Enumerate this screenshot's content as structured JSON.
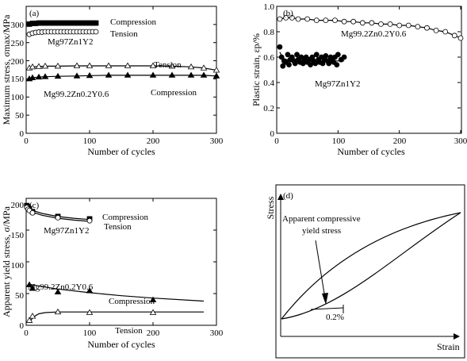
{
  "figure_text": {
    "x_tick_labels": [
      "0",
      "100",
      "200",
      "300"
    ]
  },
  "chart_data": [
    {
      "type": "line",
      "panel_label": "(a)",
      "xlabel": "Number of cycles",
      "ylabel": "Maximum stress, σmax/MPa",
      "xlim": [
        0,
        300
      ],
      "ylim": [
        0,
        350
      ],
      "yticks": [
        "0",
        "50",
        "100",
        "150",
        "200",
        "250",
        "300"
      ],
      "annotations": [
        "Compression",
        "Tension",
        "Mg97Zn1Y2",
        "Tension",
        "Mg99.2Zn0.2Y0.6",
        "Compression"
      ],
      "series": [
        {
          "marker": "filled-square",
          "x": [
            5,
            10,
            15,
            20,
            25,
            30,
            35,
            40,
            45,
            50,
            55,
            60,
            65,
            70,
            75,
            80,
            85,
            90,
            95,
            100,
            105,
            110
          ],
          "y": [
            301,
            303,
            303,
            304,
            304,
            304,
            304,
            304,
            304,
            304,
            304,
            304,
            304,
            304,
            304,
            304,
            304,
            304,
            304,
            304,
            304,
            304
          ]
        },
        {
          "marker": "open-circle",
          "x": [
            5,
            10,
            15,
            20,
            25,
            30,
            35,
            40,
            45,
            50,
            55,
            60,
            65,
            70,
            75,
            80,
            85,
            90,
            95,
            100,
            105,
            110
          ],
          "y": [
            273,
            276,
            278,
            279,
            279,
            280,
            280,
            280,
            280,
            280,
            280,
            280,
            280,
            280,
            280,
            280,
            280,
            280,
            280,
            280,
            280,
            280
          ]
        },
        {
          "marker": "open-triangle",
          "x": [
            5,
            10,
            20,
            30,
            50,
            80,
            100,
            130,
            160,
            200,
            230,
            260,
            280,
            300
          ],
          "y": [
            180,
            183,
            184,
            185,
            185,
            186,
            186,
            186,
            186,
            186,
            185,
            183,
            180,
            174
          ]
        },
        {
          "marker": "filled-triangle",
          "x": [
            5,
            10,
            20,
            30,
            50,
            80,
            100,
            130,
            160,
            200,
            230,
            260,
            280,
            300
          ],
          "y": [
            150,
            153,
            155,
            156,
            157,
            158,
            159,
            160,
            160,
            160,
            160,
            160,
            160,
            158
          ]
        }
      ]
    },
    {
      "type": "line",
      "panel_label": "(b)",
      "xlabel": "Number of cycles",
      "ylabel": "Plastic strain, εp/%",
      "xlim": [
        0,
        300
      ],
      "ylim": [
        0,
        1.0
      ],
      "yticks": [
        "0",
        "0.2",
        "0.4",
        "0.6",
        "0.8",
        "1.0"
      ],
      "annotations": [
        "Mg99.2Zn0.2Y0.6",
        "Mg97Zn1Y2"
      ],
      "series": [
        {
          "marker": "open-circle",
          "x": [
            5,
            15,
            25,
            35,
            50,
            65,
            80,
            95,
            110,
            125,
            140,
            155,
            170,
            185,
            200,
            215,
            230,
            245,
            260,
            275,
            290,
            300
          ],
          "y": [
            0.9,
            0.91,
            0.91,
            0.9,
            0.9,
            0.89,
            0.89,
            0.89,
            0.88,
            0.88,
            0.87,
            0.87,
            0.86,
            0.86,
            0.85,
            0.85,
            0.84,
            0.83,
            0.81,
            0.8,
            0.77,
            0.75
          ]
        },
        {
          "marker": "filled-circle",
          "x": [
            5,
            8,
            10,
            12,
            15,
            18,
            20,
            22,
            25,
            28,
            30,
            33,
            35,
            38,
            40,
            43,
            45,
            48,
            50,
            53,
            55,
            58,
            60,
            63,
            65,
            68,
            70,
            73,
            75,
            78,
            80,
            83,
            85,
            88,
            90,
            93,
            95,
            98,
            100,
            105,
            110
          ],
          "y": [
            0.68,
            0.6,
            0.53,
            0.57,
            0.56,
            0.62,
            0.54,
            0.58,
            0.6,
            0.57,
            0.55,
            0.62,
            0.58,
            0.56,
            0.6,
            0.55,
            0.57,
            0.6,
            0.56,
            0.58,
            0.54,
            0.6,
            0.57,
            0.55,
            0.62,
            0.58,
            0.56,
            0.6,
            0.55,
            0.58,
            0.61,
            0.57,
            0.55,
            0.6,
            0.58,
            0.56,
            0.6,
            0.54,
            0.62,
            0.58,
            0.6
          ]
        }
      ]
    },
    {
      "type": "line",
      "panel_label": "(c)",
      "xlabel": "Number of cycles",
      "ylabel": "Apparent yield stress, σ/MPa",
      "xlim": [
        0,
        300
      ],
      "ylim": [
        0,
        210
      ],
      "yticks": [
        "0",
        "50",
        "100",
        "150",
        "200"
      ],
      "annotations": [
        "Compression",
        "Tension",
        "Mg97Zn1Y2",
        "Mg99.2Zn0.2Y0.6",
        "Compression",
        "Tension"
      ],
      "series": [
        {
          "marker": "filled-square",
          "x": [
            1,
            3,
            5,
            10,
            50,
            100
          ],
          "y": [
            198,
            196,
            193,
            188,
            180,
            176
          ]
        },
        {
          "marker": "open-circle",
          "x": [
            1,
            3,
            5,
            10,
            50,
            100
          ],
          "y": [
            195,
            192,
            190,
            186,
            178,
            173
          ]
        },
        {
          "marker": "filled-triangle",
          "x": [
            5,
            10,
            50,
            100,
            200
          ],
          "y": [
            67,
            61,
            55,
            57,
            42
          ]
        },
        {
          "marker": "open-triangle",
          "x": [
            5,
            10,
            50,
            100,
            200
          ],
          "y": [
            8,
            15,
            22,
            21,
            21
          ]
        }
      ],
      "fit_curves": [
        {
          "x": [
            1,
            10,
            25,
            50,
            75,
            100
          ],
          "y": [
            200,
            190,
            185,
            180,
            177,
            175
          ]
        },
        {
          "x": [
            1,
            10,
            25,
            50,
            75,
            100
          ],
          "y": [
            197,
            187,
            182,
            177,
            174,
            172
          ]
        },
        {
          "x": [
            5,
            25,
            50,
            100,
            150,
            200,
            280
          ],
          "y": [
            68,
            64,
            60,
            54,
            49,
            45,
            40
          ]
        },
        {
          "x": [
            5,
            10,
            15,
            20,
            30,
            50,
            100,
            200,
            280
          ],
          "y": [
            5,
            12,
            16,
            19,
            21,
            22,
            22,
            22,
            22
          ]
        }
      ]
    },
    {
      "type": "line",
      "panel_label": "(d)",
      "xlabel": "Strain",
      "ylabel": "Stress",
      "annotations": [
        "Apparent compressive",
        "yield stress",
        "0.2%"
      ]
    }
  ]
}
